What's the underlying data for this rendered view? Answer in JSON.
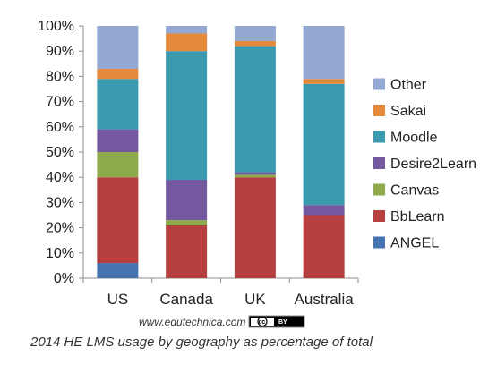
{
  "chart_data": {
    "type": "bar",
    "stacked": true,
    "categories": [
      "US",
      "Canada",
      "UK",
      "Australia"
    ],
    "series": [
      {
        "name": "ANGEL",
        "color": "#4674b2",
        "values": [
          6,
          0,
          0,
          0
        ]
      },
      {
        "name": "BbLearn",
        "color": "#b5403f",
        "values": [
          34,
          21,
          40,
          25
        ]
      },
      {
        "name": "Canvas",
        "color": "#8eaa4b",
        "values": [
          10,
          2,
          1,
          0
        ]
      },
      {
        "name": "Desire2Learn",
        "color": "#7559a0",
        "values": [
          9,
          16,
          1,
          4
        ]
      },
      {
        "name": "Moodle",
        "color": "#3a9ab0",
        "values": [
          20,
          51,
          50,
          48
        ]
      },
      {
        "name": "Sakai",
        "color": "#e58a3b",
        "values": [
          4,
          7,
          2,
          2
        ]
      },
      {
        "name": "Other",
        "color": "#93a8d2",
        "values": [
          17,
          3,
          6,
          21
        ]
      }
    ],
    "yticks": [
      "0%",
      "10%",
      "20%",
      "30%",
      "40%",
      "50%",
      "60%",
      "70%",
      "80%",
      "90%",
      "100%"
    ],
    "ylim": [
      0,
      100
    ],
    "grid": false,
    "legend": "right",
    "title": "",
    "xlabel": "",
    "ylabel": ""
  },
  "credit": {
    "site": "www.edutechnica.com",
    "license_badge": "cc",
    "license_text": "BY"
  },
  "caption": "2014 HE LMS usage by geography as percentage of total"
}
